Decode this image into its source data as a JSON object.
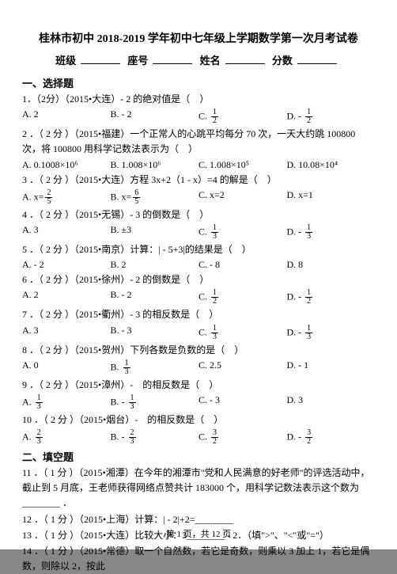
{
  "title_main": "桂林市初中 2018-2019 学年初中七年级上学期数学第一次月考试卷",
  "hdr": [
    "班级",
    "座号",
    "姓名",
    "分数"
  ],
  "sec1": "一、选择题",
  "sec2": "二、填空题",
  "q1": "1．（2分）（2015•大连）- 2 的绝对值是（　）",
  "q1a": "A. 2",
  "q1b": "B. - 2",
  "q1c": "C.",
  "q1d": "D. -",
  "q2": "2 ．（ 2 分 ）（2015•福建）一个正常人的心跳平均每分 70 次，一天大约跳 100800 次，将 100800 用科学记数法表示为（　）",
  "q2a": "A. 0.1008×10⁶",
  "q2b": "B. 1.008×10⁶",
  "q2c": "C. 1.008×10⁵",
  "q2d": "D. 10.08×10⁴",
  "q3": "3 ．（ 2 分 ）（2015•大连）方程 3x+2（1 - x）=4 的解是（　）",
  "q3a": "A. x=",
  "q3b": "B. x=",
  "q3c": "C. x=2",
  "q3d": "D. x=1",
  "q4": "4 ．（ 2 分 ）（2015•无锡）- 3 的倒数是（　）",
  "q4a": "A. 3",
  "q4b": "B. ±3",
  "q4c": "C.",
  "q4d": "D. -",
  "q5": "5 ．（ 2 分 ）（2015•南京）计算：| - 5+3|的结果是（　）",
  "q5a": "A. - 2",
  "q5b": "B. 2",
  "q5c": "C. - 8",
  "q5d": "D. 8",
  "q6": "6 ．（ 2 分 ）（2015•徐州）- 2 的倒数是（　）",
  "q6a": "A. 2",
  "q6b": "B. - 2",
  "q6c": "C.",
  "q6d": "D. -",
  "q7": "7 ．（ 2 分 ）（2015•衢州）- 3 的相反数是（　）",
  "q7a": "A. 3",
  "q7b": "B. - 3",
  "q7c": "C.",
  "q7d": "D. -",
  "q8": "8 ．（ 2 分 ）（2015•贺州）下列各数是负数的是（　）",
  "q8a": "A. 0",
  "q8b": "B.",
  "q8c": "C. 2.5",
  "q8d": "D. - 1",
  "q9": "9 ．（ 2 分 ）（2015•漳州）-　的相反数是（　）",
  "q9a": "A.",
  "q9b": "B. -",
  "q9c": "C. - 3",
  "q9d": "D. 3",
  "q10": "10 ．（ 2 分 ）（2015•烟台）-　的相反数是（　）",
  "q10a": "A.",
  "q10b": "B. -",
  "q10c": "C.",
  "q10d": "D. -",
  "q11": "11 ．（ 1 分 ）（2015•湘潭）在今年的湘潭市\"党和人民满意的好老师\"的评选活动中，截止到 5 月底，王老师获得网络点赞共计 183000 个，用科学记数法表示这个数为________ ．",
  "q12": "12 ．（ 1 分 ）（2015•上海）计算：| - 2|+2=________",
  "q13": "13 ．（ 1 分 ）（2015•大连）比较大小：3________ - 2．（填\">\"、\"<\"或\"=\"）",
  "q14": "14 ．（ 1 分 ）（2015•常德）取一个自然数，若它是奇数，则乘以 3 加上 1，若它是偶数，则除以 2，按此",
  "footer": "第 1 页，共 12 页"
}
